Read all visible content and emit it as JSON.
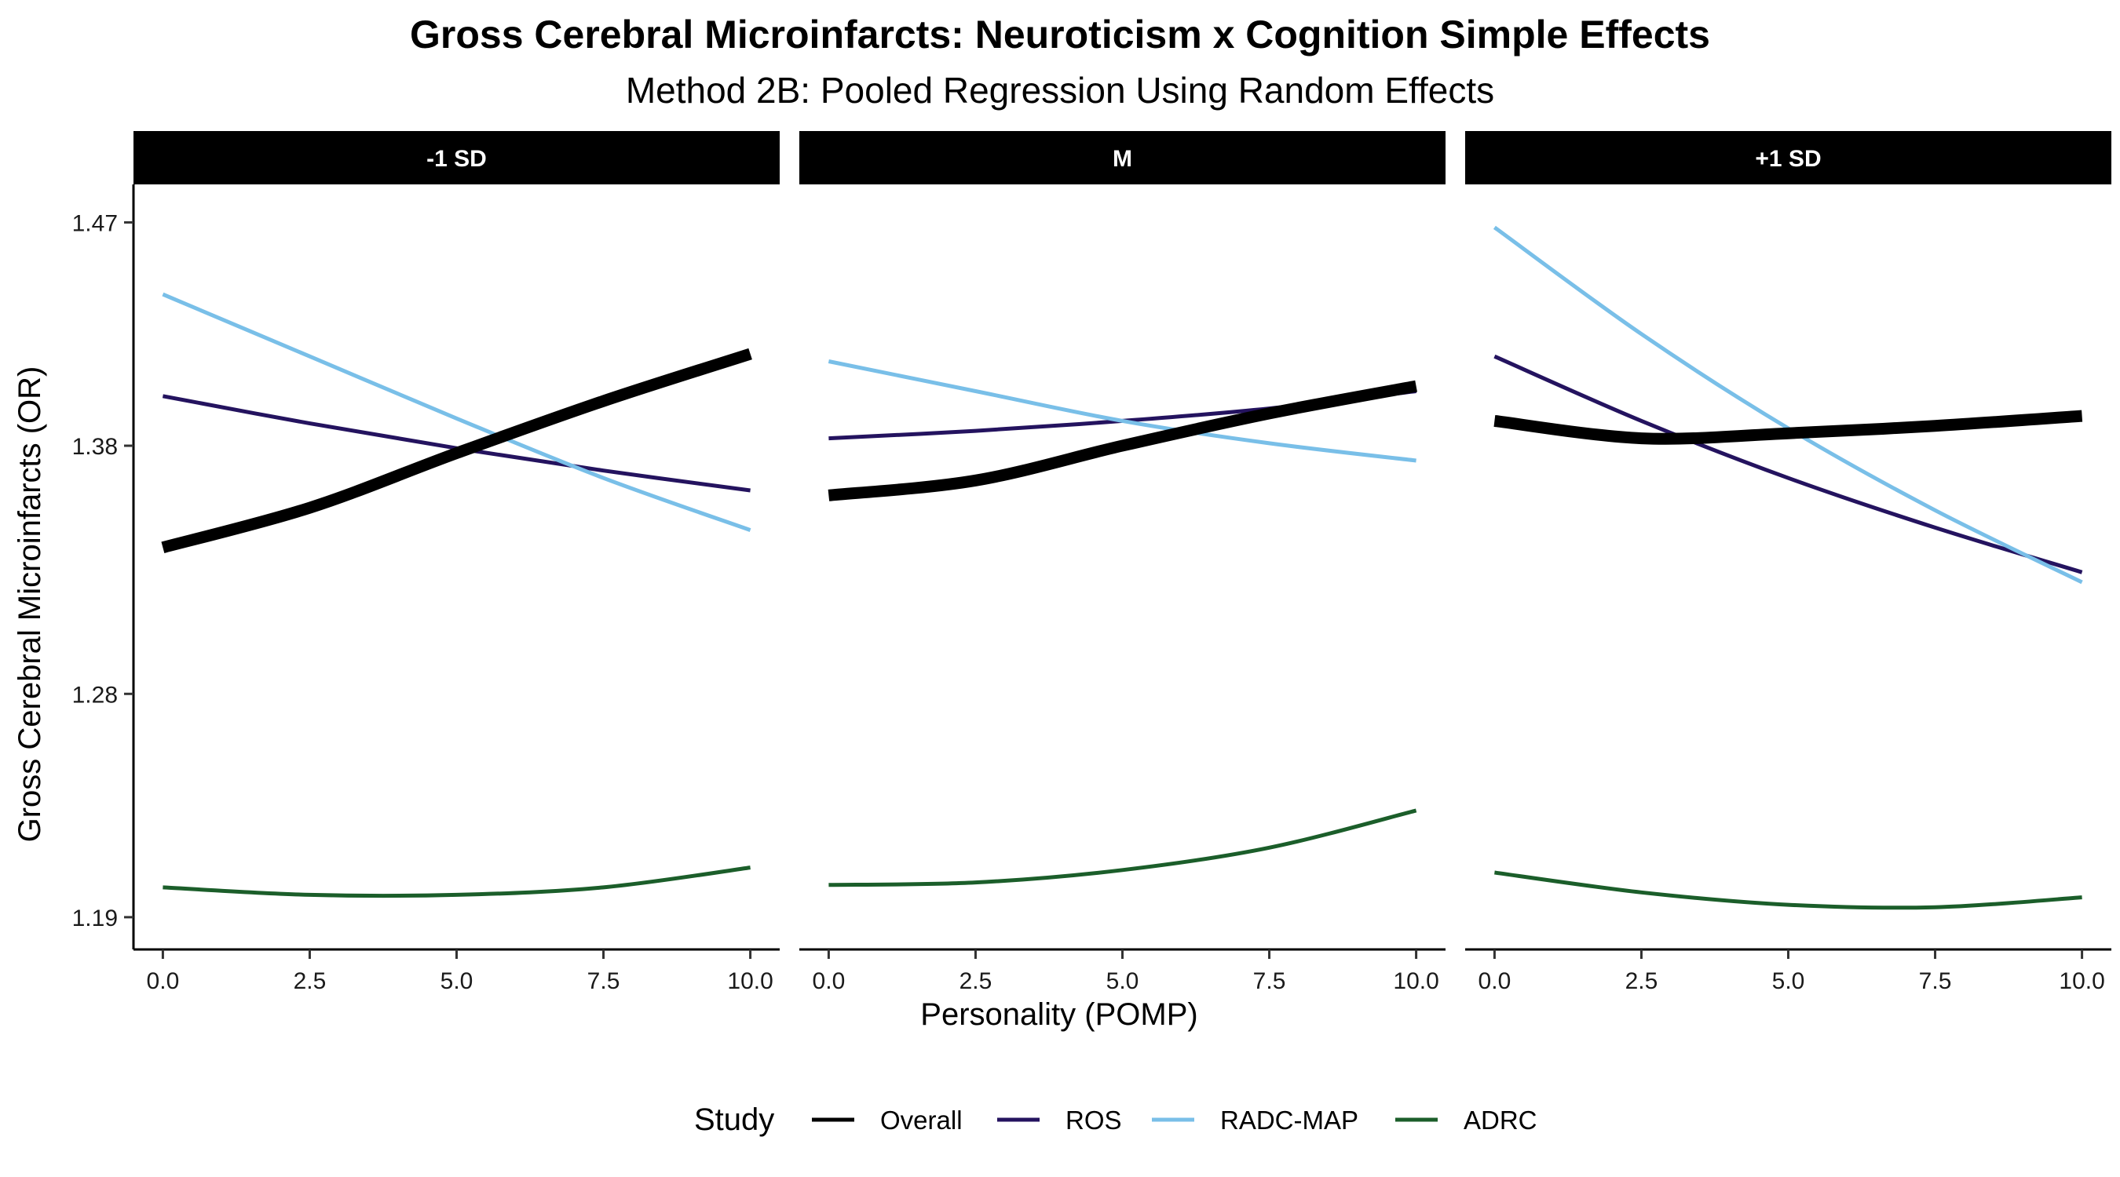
{
  "chart_data": {
    "type": "line",
    "title": "Gross Cerebral Microinfarcts: Neuroticism x Cognition Simple Effects",
    "subtitle": "Method 2B: Pooled Regression Using Random Effects",
    "xlabel": "Personality (POMP)",
    "ylabel": "Gross Cerebral Microinfarcts (OR)",
    "xlim": [
      -0.5,
      10.5
    ],
    "ylim": [
      1.177,
      1.485
    ],
    "x_ticks": [
      0.0,
      2.5,
      5.0,
      7.5,
      10.0
    ],
    "x_tick_labels": [
      "0.0",
      "2.5",
      "5.0",
      "7.5",
      "10.0"
    ],
    "y_ticks": [
      1.19,
      1.28,
      1.38,
      1.47
    ],
    "y_tick_labels": [
      "1.19",
      "1.28",
      "1.38",
      "1.47"
    ],
    "grid": false,
    "legend": {
      "title": "Study",
      "position": "bottom",
      "entries": [
        "Overall",
        "ROS",
        "RADC-MAP",
        "ADRC"
      ]
    },
    "series_styles": [
      {
        "name": "Overall",
        "color": "#000000",
        "emphasis": "thick"
      },
      {
        "name": "ROS",
        "color": "#24135f",
        "emphasis": "normal"
      },
      {
        "name": "RADC-MAP",
        "color": "#79bfe8",
        "emphasis": "normal"
      },
      {
        "name": "ADRC",
        "color": "#1b5e2a",
        "emphasis": "normal"
      }
    ],
    "x": [
      0,
      2.5,
      5,
      7.5,
      10
    ],
    "panels": [
      {
        "label": "-1 SD",
        "series": [
          {
            "name": "Overall",
            "values": [
              1.339,
              1.355,
              1.377,
              1.398,
              1.417
            ]
          },
          {
            "name": "ROS",
            "values": [
              1.4,
              1.389,
              1.379,
              1.37,
              1.362
            ]
          },
          {
            "name": "RADC-MAP",
            "values": [
              1.441,
              1.416,
              1.391,
              1.367,
              1.346
            ]
          },
          {
            "name": "ADRC",
            "values": [
              1.202,
              1.199,
              1.199,
              1.202,
              1.21
            ]
          }
        ]
      },
      {
        "label": "M",
        "series": [
          {
            "name": "Overall",
            "values": [
              1.36,
              1.366,
              1.38,
              1.393,
              1.404
            ]
          },
          {
            "name": "ROS",
            "values": [
              1.383,
              1.386,
              1.39,
              1.395,
              1.402
            ]
          },
          {
            "name": "RADC-MAP",
            "values": [
              1.414,
              1.402,
              1.39,
              1.381,
              1.374
            ]
          },
          {
            "name": "ADRC",
            "values": [
              1.203,
              1.204,
              1.209,
              1.218,
              1.233
            ]
          }
        ]
      },
      {
        "label": "+1 SD",
        "series": [
          {
            "name": "Overall",
            "values": [
              1.39,
              1.383,
              1.385,
              1.388,
              1.392
            ]
          },
          {
            "name": "ROS",
            "values": [
              1.416,
              1.39,
              1.367,
              1.347,
              1.329
            ]
          },
          {
            "name": "RADC-MAP",
            "values": [
              1.468,
              1.425,
              1.387,
              1.354,
              1.325
            ]
          },
          {
            "name": "ADRC",
            "values": [
              1.208,
              1.2,
              1.195,
              1.194,
              1.198
            ]
          }
        ]
      }
    ]
  }
}
